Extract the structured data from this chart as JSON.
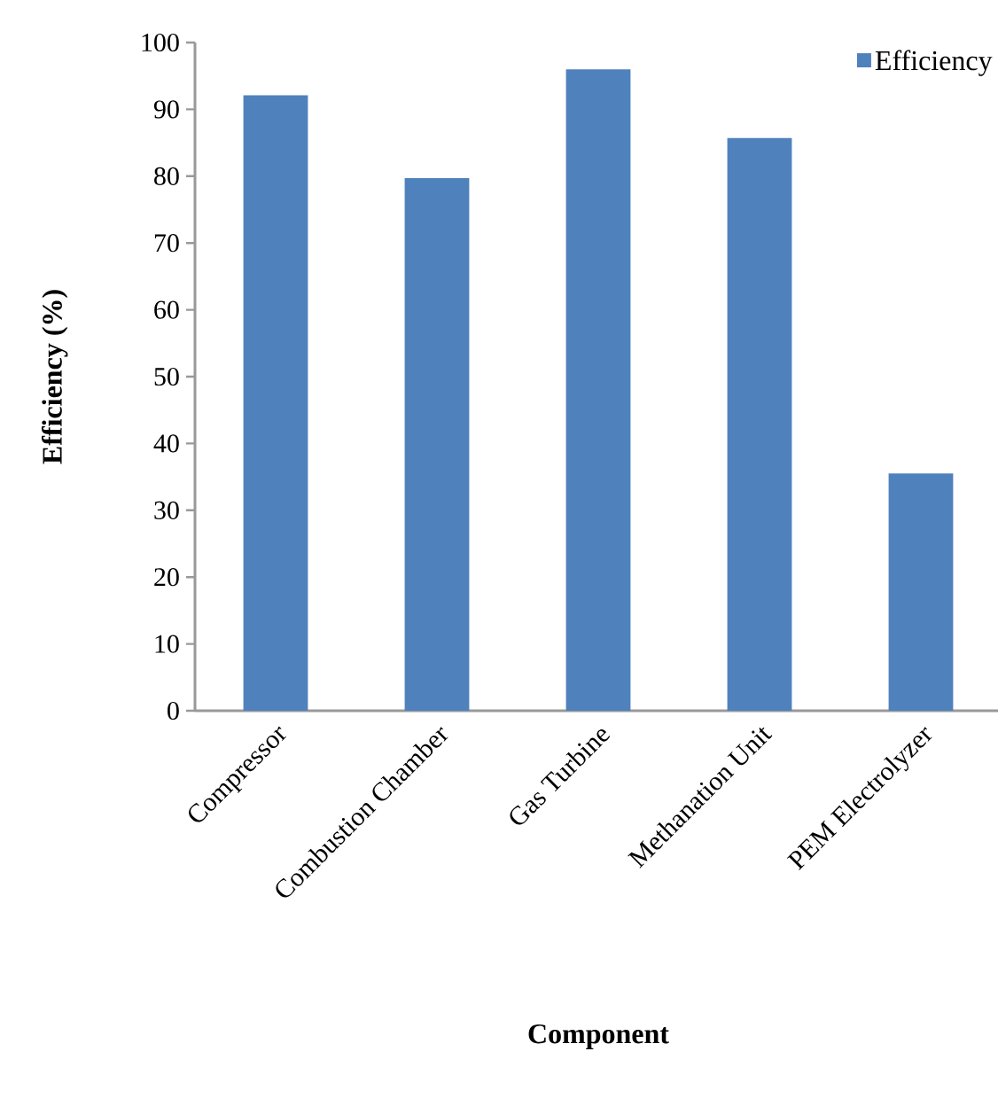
{
  "chart_data": {
    "type": "bar",
    "xlabel": "Component",
    "ylabel": "Efficiency (%)",
    "categories": [
      "Compressor",
      "Combustion Chamber",
      "Gas Turbine",
      "Methanation Unit",
      "PEM Electrolyzer"
    ],
    "series": [
      {
        "name": "Efficiency",
        "color": "#4f81bd",
        "values": [
          92.1,
          79.7,
          96.0,
          85.7,
          35.5
        ]
      }
    ],
    "ylim": [
      0,
      100
    ],
    "yticks": [
      0,
      10,
      20,
      30,
      40,
      50,
      60,
      70,
      80,
      90,
      100
    ],
    "grid": false,
    "legend": "top right"
  }
}
